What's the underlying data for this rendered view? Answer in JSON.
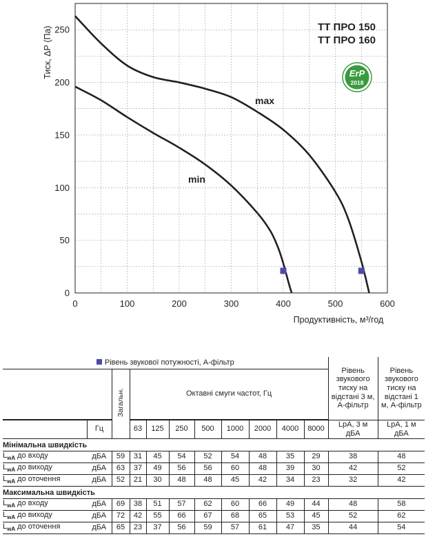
{
  "chart_data": {
    "type": "line",
    "xlabel": "Продуктивність, м³/год",
    "ylabel": "Тиск, ΔР (Па)",
    "xlim": [
      0,
      600
    ],
    "ylim": [
      0,
      275
    ],
    "x_ticks": [
      "0",
      "100",
      "200",
      "300",
      "400",
      "500",
      "600"
    ],
    "y_ticks": [
      "0",
      "50",
      "100",
      "150",
      "200",
      "250"
    ],
    "x_tick_values": [
      0,
      100,
      200,
      300,
      400,
      500,
      600
    ],
    "y_tick_values": [
      0,
      50,
      100,
      150,
      200,
      250
    ],
    "x_grid": [
      0,
      50,
      100,
      150,
      200,
      250,
      300,
      350,
      400,
      450,
      500,
      550,
      600
    ],
    "y_grid": [
      0,
      25,
      50,
      75,
      100,
      125,
      150,
      175,
      200,
      225,
      250
    ],
    "grid": true,
    "models": [
      "ТТ ПРО 150",
      "ТТ ПРО 160"
    ],
    "badge": {
      "text": "ErP",
      "year": "2018",
      "color": "#3a9a3f"
    },
    "marker_color": "#4b4ba8",
    "series": [
      {
        "name": "max",
        "points": [
          [
            0,
            263
          ],
          [
            50,
            237
          ],
          [
            100,
            216
          ],
          [
            150,
            205
          ],
          [
            200,
            200
          ],
          [
            250,
            194
          ],
          [
            300,
            186
          ],
          [
            350,
            172
          ],
          [
            400,
            155
          ],
          [
            450,
            131
          ],
          [
            500,
            96
          ],
          [
            525,
            70
          ],
          [
            550,
            30
          ],
          [
            565,
            0
          ]
        ],
        "marker": [
          550,
          21
        ]
      },
      {
        "name": "min",
        "points": [
          [
            0,
            196
          ],
          [
            50,
            183
          ],
          [
            100,
            167
          ],
          [
            150,
            152
          ],
          [
            200,
            138
          ],
          [
            250,
            122
          ],
          [
            300,
            102
          ],
          [
            350,
            76
          ],
          [
            375,
            59
          ],
          [
            390,
            43
          ],
          [
            400,
            28
          ],
          [
            410,
            10
          ],
          [
            416,
            0
          ]
        ],
        "marker": [
          400,
          21
        ]
      }
    ]
  },
  "table": {
    "legend": "Рівень звукової потужності, А-фільтр",
    "total_label": "Загальн.",
    "bands_label": "Октавні смуги частот, Гц",
    "pressure3_header": "Рівень звукового тиску на відстані 3 м, А-фільтр",
    "pressure1_header": "Рівень звукового тиску на відстані 1 м, А-фільтр",
    "hz_label": "Гц",
    "bands": [
      "63",
      "125",
      "250",
      "500",
      "1000",
      "2000",
      "4000",
      "8000"
    ],
    "lpa3": "LpA, 3 м дБА",
    "lpa1": "LpA, 1 м дБА",
    "groups": [
      {
        "title": "Мінімальна швидкість",
        "rows": [
          {
            "sub": "wA",
            "label": "до входу",
            "unit": "дБА",
            "total": "59",
            "values": [
              "31",
              "45",
              "54",
              "52",
              "54",
              "48",
              "35",
              "29"
            ],
            "p3": "38",
            "p1": "48"
          },
          {
            "sub": "wA",
            "label": "до виходу",
            "unit": "дБА",
            "total": "63",
            "values": [
              "37",
              "49",
              "56",
              "56",
              "60",
              "48",
              "39",
              "30"
            ],
            "p3": "42",
            "p1": "52"
          },
          {
            "sub": "wA",
            "label": "до оточення",
            "unit": "дБА",
            "total": "52",
            "values": [
              "21",
              "30",
              "48",
              "48",
              "45",
              "42",
              "34",
              "23"
            ],
            "p3": "32",
            "p1": "42"
          }
        ]
      },
      {
        "title": "Максимальна швидкість",
        "rows": [
          {
            "sub": "wA",
            "label": "до входу",
            "unit": "дБА",
            "total": "69",
            "values": [
              "38",
              "51",
              "57",
              "62",
              "60",
              "66",
              "49",
              "44"
            ],
            "p3": "48",
            "p1": "58"
          },
          {
            "sub": "wA",
            "label": "до виходу",
            "unit": "дБА",
            "total": "72",
            "values": [
              "42",
              "55",
              "66",
              "67",
              "68",
              "65",
              "53",
              "45"
            ],
            "p3": "52",
            "p1": "62"
          },
          {
            "sub": "wA",
            "label": "до оточення",
            "unit": "дБА",
            "total": "65",
            "values": [
              "23",
              "37",
              "56",
              "59",
              "57",
              "61",
              "47",
              "35"
            ],
            "p3": "44",
            "p1": "54"
          }
        ]
      }
    ]
  }
}
